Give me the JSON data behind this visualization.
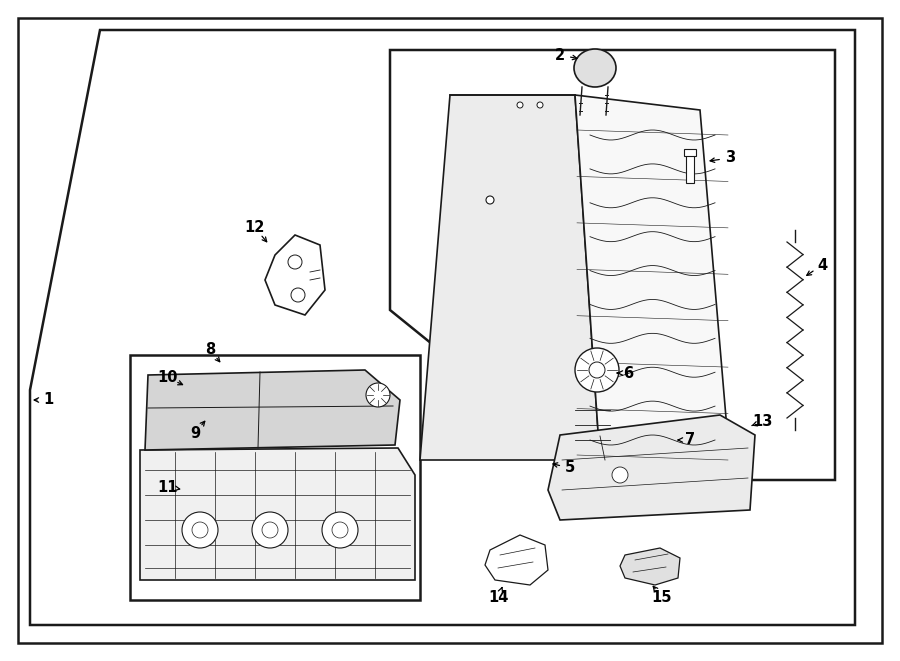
{
  "bg_color": "#ffffff",
  "line_color": "#1a1a1a",
  "fig_width": 9.0,
  "fig_height": 6.61,
  "dpi": 100,
  "lw_outer": 1.8,
  "lw_inner": 1.2,
  "lw_detail": 0.7,
  "label_fontsize": 10.5
}
